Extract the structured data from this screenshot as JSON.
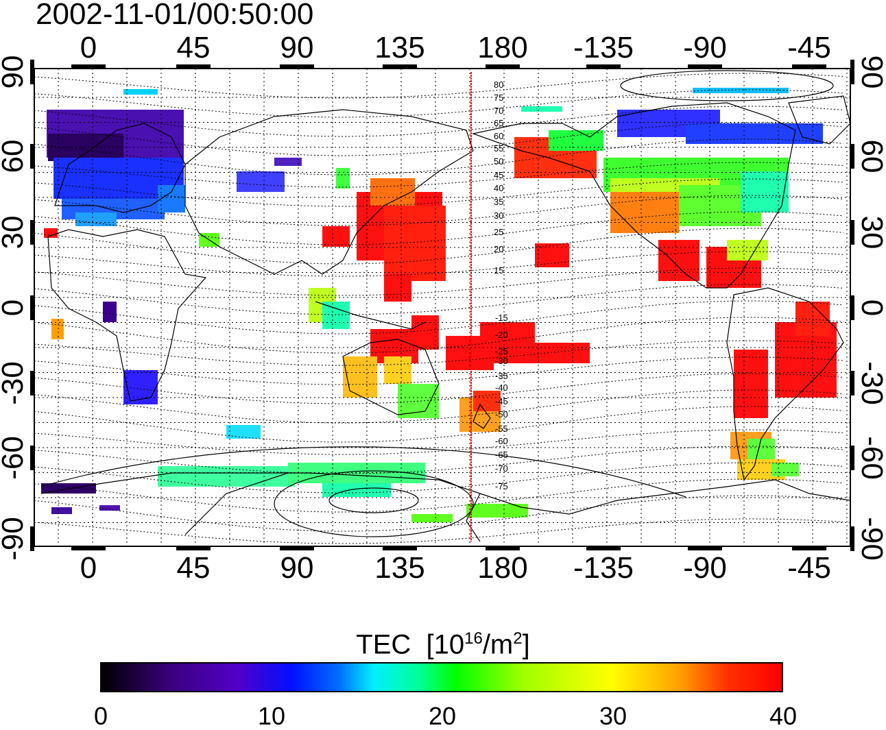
{
  "timestamp": "2002-11-01/00:50:00",
  "map": {
    "top_longitude_labels": [
      "0",
      "45",
      "90",
      "135",
      "180",
      "-135",
      "-90",
      "-45"
    ],
    "bottom_longitude_labels": [
      "0",
      "45",
      "90",
      "135",
      "180",
      "-135",
      "-90",
      "-45"
    ],
    "left_latitude_labels": [
      "90",
      "60",
      "30",
      "0",
      "-30",
      "-60",
      "-90"
    ],
    "right_latitude_labels": [
      "90",
      "60",
      "30",
      "0",
      "-30",
      "-60",
      "-90"
    ],
    "magnetic_latitude_labels_north": [
      "80",
      "75",
      "70",
      "65",
      "60",
      "55",
      "50",
      "45",
      "40",
      "35",
      "30",
      "25",
      "20",
      "15"
    ],
    "magnetic_latitude_labels_south": [
      "-15",
      "-20",
      "-25",
      "-30",
      "-35",
      "-40",
      "-45",
      "-50",
      "-55",
      "-60",
      "-65",
      "-70",
      "-75"
    ],
    "marker_line_color": "#ff0000"
  },
  "colorbar": {
    "title": "TEC",
    "unit_prefix": "[10",
    "unit_exp1": "16",
    "unit_mid": "/m",
    "unit_exp2": "2",
    "unit_suffix": "]",
    "ticks": [
      "0",
      "10",
      "20",
      "30",
      "40"
    ],
    "range": [
      0,
      40
    ],
    "colors": [
      "#000000",
      "#5200c8",
      "#0010ff",
      "#00f0ff",
      "#00ff00",
      "#ffff00",
      "#ff0000"
    ]
  }
}
